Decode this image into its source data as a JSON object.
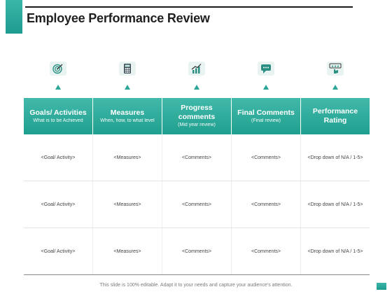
{
  "title": "Employee Performance Review",
  "colors": {
    "accent": "#2aa596",
    "title": "#1f1f1f"
  },
  "icons": [
    "target-icon",
    "calculator-icon",
    "growth-chart-icon",
    "comment-bubble-icon",
    "rating-icon"
  ],
  "columns": [
    {
      "title": "Goals/ Activities",
      "subtitle": "What is to be Achieved"
    },
    {
      "title": "Measures",
      "subtitle": "When, how, to what level"
    },
    {
      "title": "Progress comments",
      "subtitle": "(Mid year review)"
    },
    {
      "title": "Final Comments",
      "subtitle": "(Final review)"
    },
    {
      "title": "Performance Rating",
      "subtitle": ""
    }
  ],
  "rows": [
    [
      "<Goal/ Activity>",
      "<Measures>",
      "<Comments>",
      "<Comments>",
      "<Drop down of N/A / 1-5>"
    ],
    [
      "<Goal/ Activity>",
      "<Measures>",
      "<Comments>",
      "<Comments>",
      "<Drop down of N/A / 1-5>"
    ],
    [
      "<Goal/ Activity>",
      "<Measures>",
      "<Comments>",
      "<Comments>",
      "<Drop down of N/A / 1-5>"
    ]
  ],
  "footer": "This slide is 100% editable. Adapt it to your needs and capture your audience's attention."
}
